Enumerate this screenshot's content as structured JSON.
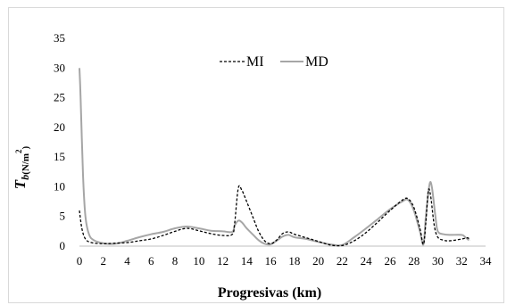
{
  "chart_data": {
    "type": "line",
    "xlabel": "Progresivas (km)",
    "ylabel": {
      "main": "T",
      "sub": "b",
      "unit": "(N/m",
      "sup": "2",
      "close": ")"
    },
    "xlim": [
      0,
      34
    ],
    "ylim": [
      0,
      35
    ],
    "xticks": [
      "0",
      "2",
      "4",
      "6",
      "8",
      "10",
      "12",
      "14",
      "16",
      "18",
      "20",
      "22",
      "24",
      "26",
      "28",
      "30",
      "32",
      "34"
    ],
    "yticks": [
      "0",
      "5",
      "10",
      "15",
      "20",
      "25",
      "30",
      "35"
    ],
    "grid": false,
    "legend_position": "top",
    "series": [
      {
        "name": "MI",
        "color": "#000000",
        "dash": "dashed",
        "points": [
          [
            0,
            6.0
          ],
          [
            0.2,
            3.0
          ],
          [
            0.5,
            1.2
          ],
          [
            1,
            0.6
          ],
          [
            2,
            0.4
          ],
          [
            3,
            0.5
          ],
          [
            4,
            0.6
          ],
          [
            5,
            0.9
          ],
          [
            6,
            1.2
          ],
          [
            7,
            1.8
          ],
          [
            8,
            2.5
          ],
          [
            9,
            3.0
          ],
          [
            10,
            2.6
          ],
          [
            11,
            2.1
          ],
          [
            12,
            1.8
          ],
          [
            12.8,
            2.0
          ],
          [
            13,
            4.0
          ],
          [
            13.3,
            9.8
          ],
          [
            13.6,
            9.4
          ],
          [
            14,
            7.5
          ],
          [
            14.5,
            5.0
          ],
          [
            15,
            2.5
          ],
          [
            15.5,
            0.9
          ],
          [
            16,
            0.4
          ],
          [
            16.5,
            1.0
          ],
          [
            17,
            2.1
          ],
          [
            17.5,
            2.4
          ],
          [
            18,
            2.0
          ],
          [
            19,
            1.4
          ],
          [
            20,
            0.8
          ],
          [
            21,
            0.2
          ],
          [
            22,
            0.1
          ],
          [
            23,
            0.9
          ],
          [
            24,
            2.3
          ],
          [
            25,
            4.1
          ],
          [
            26,
            6.0
          ],
          [
            27,
            7.7
          ],
          [
            27.5,
            8.0
          ],
          [
            28,
            6.5
          ],
          [
            28.5,
            3.0
          ],
          [
            28.8,
            0.3
          ],
          [
            29,
            4.0
          ],
          [
            29.2,
            9.3
          ],
          [
            29.4,
            8.5
          ],
          [
            29.7,
            3.5
          ],
          [
            30,
            1.5
          ],
          [
            30.5,
            1.0
          ],
          [
            31,
            0.9
          ],
          [
            32,
            1.2
          ],
          [
            32.5,
            1.4
          ],
          [
            32.7,
            1.0
          ]
        ]
      },
      {
        "name": "MD",
        "color": "#a6a6a6",
        "dash": "solid",
        "points": [
          [
            0,
            30.0
          ],
          [
            0.1,
            25.0
          ],
          [
            0.3,
            12.0
          ],
          [
            0.5,
            5.0
          ],
          [
            0.8,
            2.0
          ],
          [
            1.2,
            1.0
          ],
          [
            2,
            0.5
          ],
          [
            3,
            0.4
          ],
          [
            4,
            0.9
          ],
          [
            5,
            1.5
          ],
          [
            6,
            2.0
          ],
          [
            7,
            2.4
          ],
          [
            8,
            3.0
          ],
          [
            9,
            3.3
          ],
          [
            10,
            3.0
          ],
          [
            11,
            2.6
          ],
          [
            12,
            2.5
          ],
          [
            12.8,
            2.4
          ],
          [
            13,
            3.5
          ],
          [
            13.3,
            4.3
          ],
          [
            13.6,
            4.0
          ],
          [
            14,
            3.0
          ],
          [
            14.5,
            2.0
          ],
          [
            15,
            1.0
          ],
          [
            15.5,
            0.4
          ],
          [
            16,
            0.3
          ],
          [
            16.5,
            0.9
          ],
          [
            17,
            1.6
          ],
          [
            17.5,
            1.9
          ],
          [
            18,
            1.5
          ],
          [
            19,
            1.2
          ],
          [
            20,
            0.7
          ],
          [
            21,
            0.3
          ],
          [
            22,
            0.2
          ],
          [
            23,
            1.5
          ],
          [
            24,
            3.0
          ],
          [
            25,
            4.6
          ],
          [
            26,
            6.2
          ],
          [
            27,
            7.5
          ],
          [
            27.5,
            7.8
          ],
          [
            28,
            6.0
          ],
          [
            28.5,
            2.5
          ],
          [
            28.8,
            0.3
          ],
          [
            29,
            5.0
          ],
          [
            29.3,
            10.3
          ],
          [
            29.5,
            10.0
          ],
          [
            29.8,
            5.0
          ],
          [
            30,
            2.5
          ],
          [
            30.5,
            2.0
          ],
          [
            31,
            1.9
          ],
          [
            32,
            1.9
          ],
          [
            32.3,
            1.5
          ],
          [
            32.6,
            1.0
          ]
        ]
      }
    ]
  }
}
